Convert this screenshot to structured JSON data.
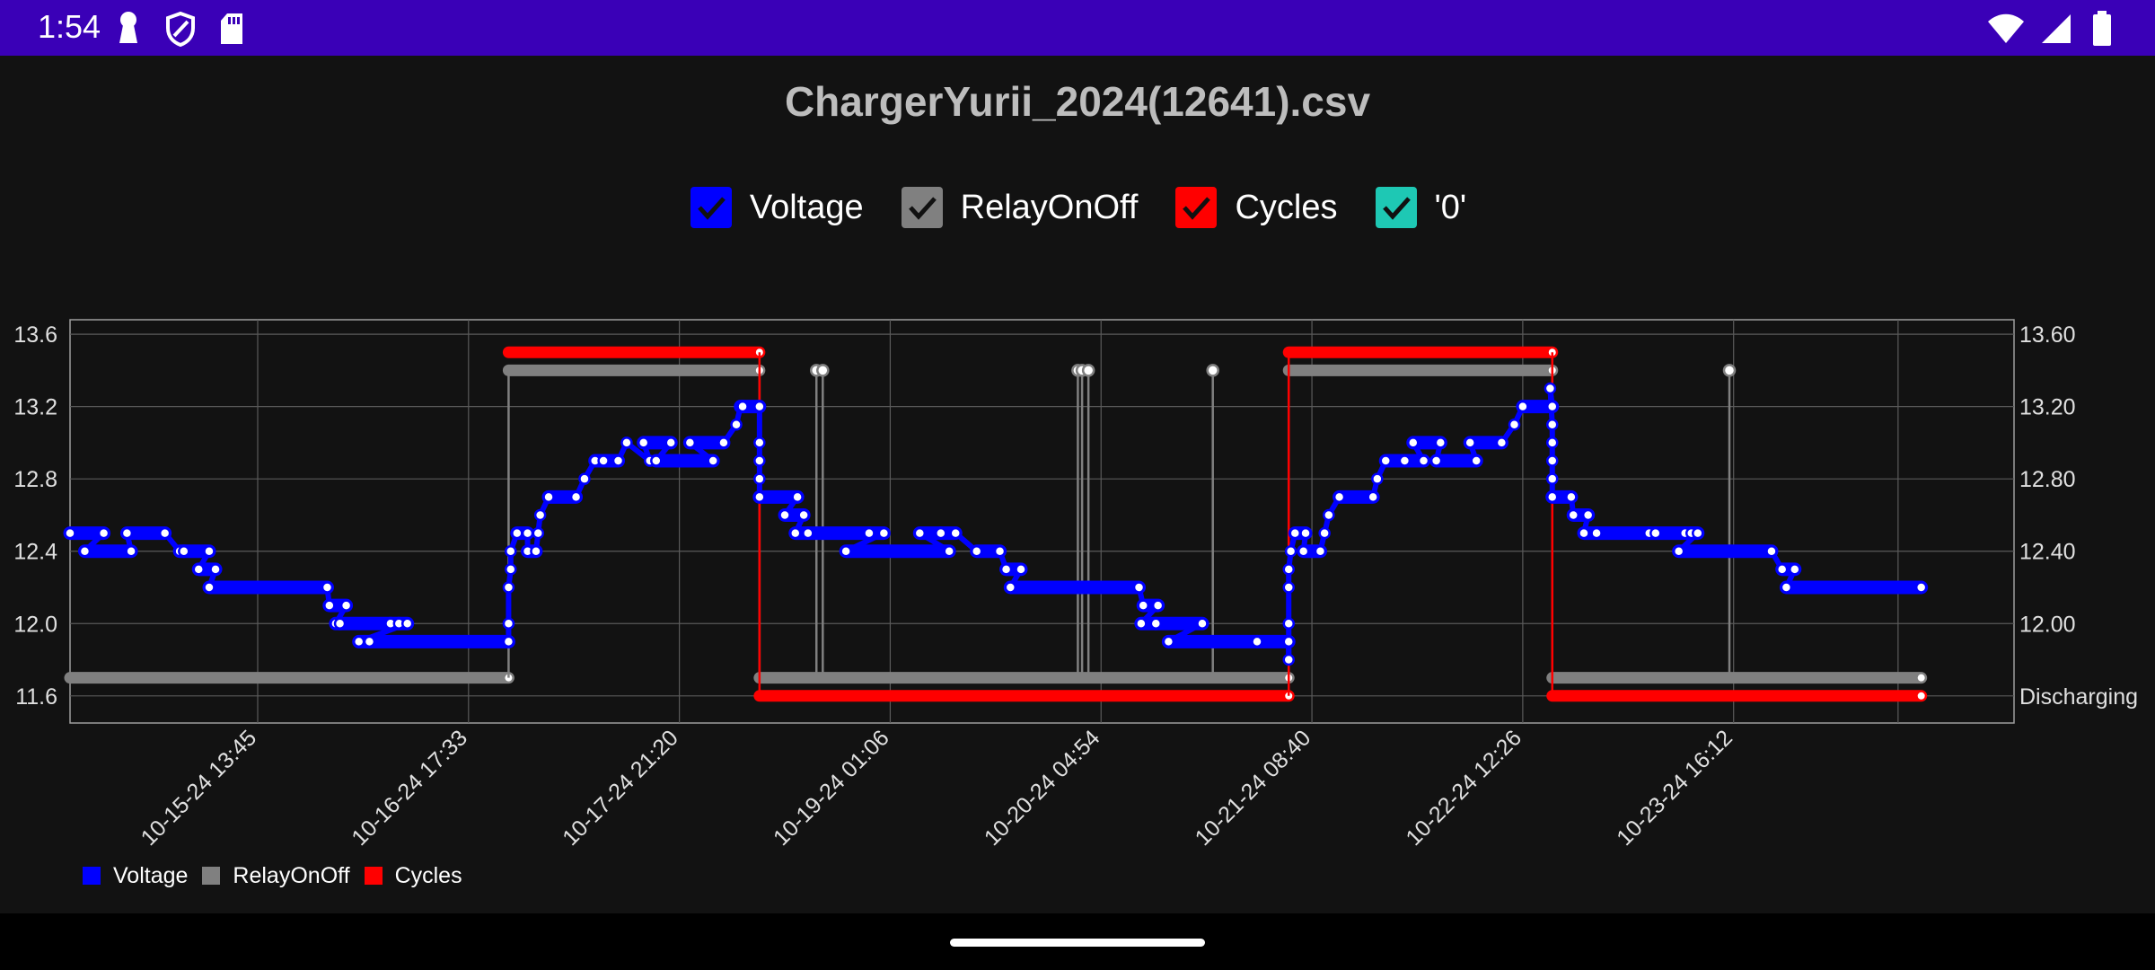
{
  "status_bar": {
    "time": "1:54",
    "left_icons": [
      "keyhole-icon",
      "shield-icon",
      "sd-card-icon"
    ],
    "right_icons": [
      "wifi-icon",
      "signal-icon",
      "battery-icon"
    ]
  },
  "title": "ChargerYurii_2024(12641).csv",
  "toggles": [
    {
      "label": "Voltage",
      "color": "#0000ff",
      "checked": true
    },
    {
      "label": "RelayOnOff",
      "color": "#808080",
      "checked": true
    },
    {
      "label": "Cycles",
      "color": "#ff0000",
      "checked": true
    },
    {
      "label": "'0'",
      "color": "#1ec8b4",
      "checked": true
    }
  ],
  "bottom_legend": [
    {
      "label": "Voltage",
      "color": "#0000ff"
    },
    {
      "label": "RelayOnOff",
      "color": "#808080"
    },
    {
      "label": "Cycles",
      "color": "#ff0000"
    }
  ],
  "chart_data": {
    "type": "line",
    "left_axis": {
      "ticks": [
        11.6,
        12.0,
        12.4,
        12.8,
        13.2,
        13.6
      ],
      "tick_labels": [
        "11.6",
        "12.0",
        "12.4",
        "12.8",
        "13.2",
        "13.6"
      ],
      "range": [
        11.45,
        13.68
      ]
    },
    "right_axis": {
      "tick_labels": [
        "Discharging",
        "12.00",
        "12.40",
        "12.80",
        "13.20",
        "13.60"
      ]
    },
    "x_axis": {
      "unit": "hours since first x tick",
      "range": [
        -89,
        833
      ],
      "ticks": [
        0,
        100,
        200,
        300,
        400,
        500,
        600,
        700
      ],
      "tick_labels": [
        "10-15-24 13:45",
        "10-16-24 17:33",
        "10-17-24 21:20",
        "10-19-24 01:06",
        "10-20-24 04:54",
        "10-21-24 08:40",
        "10-22-24 12:26",
        "10-23-24 16:12"
      ],
      "extra_gridlines": [
        778
      ]
    },
    "grid": true,
    "series": [
      {
        "name": "Voltage",
        "color": "#0000ff",
        "points": [
          [
            -89,
            12.5
          ],
          [
            -73,
            12.5
          ],
          [
            -82,
            12.4
          ],
          [
            -60,
            12.4
          ],
          [
            -62,
            12.5
          ],
          [
            -44,
            12.5
          ],
          [
            -37,
            12.4
          ],
          [
            -35,
            12.4
          ],
          [
            -23,
            12.4
          ],
          [
            -28,
            12.3
          ],
          [
            -20,
            12.3
          ],
          [
            -23,
            12.2
          ],
          [
            33,
            12.2
          ],
          [
            34,
            12.1
          ],
          [
            42,
            12.1
          ],
          [
            37,
            12.0
          ],
          [
            39,
            12.0
          ],
          [
            63,
            12.0
          ],
          [
            67,
            12.0
          ],
          [
            71,
            12.0
          ],
          [
            48,
            11.9
          ],
          [
            53,
            11.9
          ],
          [
            119,
            11.9
          ],
          [
            119,
            12.0
          ],
          [
            119,
            12.2
          ],
          [
            120,
            12.3
          ],
          [
            120,
            12.4
          ],
          [
            123,
            12.5
          ],
          [
            128,
            12.5
          ],
          [
            128,
            12.4
          ],
          [
            132,
            12.4
          ],
          [
            133,
            12.5
          ],
          [
            134,
            12.6
          ],
          [
            138,
            12.7
          ],
          [
            151,
            12.7
          ],
          [
            155,
            12.8
          ],
          [
            160,
            12.9
          ],
          [
            164,
            12.9
          ],
          [
            171,
            12.9
          ],
          [
            175,
            13.0
          ],
          [
            186,
            12.9
          ],
          [
            183,
            13.0
          ],
          [
            196,
            13.0
          ],
          [
            189,
            12.9
          ],
          [
            216,
            12.9
          ],
          [
            205,
            13.0
          ],
          [
            221,
            13.0
          ],
          [
            227,
            13.1
          ],
          [
            229,
            13.2
          ],
          [
            230,
            13.2
          ],
          [
            238,
            13.2
          ],
          [
            238,
            13.0
          ],
          [
            238,
            12.9
          ],
          [
            238,
            12.8
          ],
          [
            238,
            12.7
          ],
          [
            256,
            12.7
          ],
          [
            250,
            12.6
          ],
          [
            259,
            12.6
          ],
          [
            255,
            12.5
          ],
          [
            261,
            12.5
          ],
          [
            290,
            12.5
          ],
          [
            297,
            12.5
          ],
          [
            279,
            12.4
          ],
          [
            328,
            12.4
          ],
          [
            314,
            12.5
          ],
          [
            324,
            12.5
          ],
          [
            331,
            12.5
          ],
          [
            341,
            12.4
          ],
          [
            352,
            12.4
          ],
          [
            355,
            12.3
          ],
          [
            362,
            12.3
          ],
          [
            357,
            12.2
          ],
          [
            418,
            12.2
          ],
          [
            420,
            12.1
          ],
          [
            427,
            12.1
          ],
          [
            419,
            12.0
          ],
          [
            426,
            12.0
          ],
          [
            448,
            12.0
          ],
          [
            432,
            11.9
          ],
          [
            474,
            11.9
          ],
          [
            489,
            11.9
          ],
          [
            489,
            11.8
          ],
          [
            489,
            12.0
          ],
          [
            489,
            12.2
          ],
          [
            489,
            12.3
          ],
          [
            490,
            12.4
          ],
          [
            492,
            12.5
          ],
          [
            497,
            12.5
          ],
          [
            496,
            12.4
          ],
          [
            504,
            12.4
          ],
          [
            506,
            12.5
          ],
          [
            508,
            12.6
          ],
          [
            513,
            12.7
          ],
          [
            529,
            12.7
          ],
          [
            531,
            12.8
          ],
          [
            535,
            12.9
          ],
          [
            544,
            12.9
          ],
          [
            553,
            12.9
          ],
          [
            548,
            13.0
          ],
          [
            561,
            13.0
          ],
          [
            559,
            12.9
          ],
          [
            578,
            12.9
          ],
          [
            575,
            13.0
          ],
          [
            590,
            13.0
          ],
          [
            596,
            13.1
          ],
          [
            600,
            13.2
          ],
          [
            614,
            13.2
          ],
          [
            613,
            13.3
          ],
          [
            614,
            13.1
          ],
          [
            614,
            13.0
          ],
          [
            614,
            12.9
          ],
          [
            614,
            12.8
          ],
          [
            614,
            12.7
          ],
          [
            623,
            12.7
          ],
          [
            624,
            12.6
          ],
          [
            631,
            12.6
          ],
          [
            629,
            12.5
          ],
          [
            635,
            12.5
          ],
          [
            660,
            12.5
          ],
          [
            663,
            12.5
          ],
          [
            677,
            12.5
          ],
          [
            680,
            12.5
          ],
          [
            683,
            12.5
          ],
          [
            674,
            12.4
          ],
          [
            718,
            12.4
          ],
          [
            723,
            12.3
          ],
          [
            729,
            12.3
          ],
          [
            725,
            12.2
          ],
          [
            789,
            12.2
          ]
        ]
      },
      {
        "name": "RelayOnOff",
        "color": "#808080",
        "segments": [
          [
            -89,
            119,
            "low"
          ],
          [
            119,
            238,
            "high"
          ],
          [
            238,
            489,
            "low"
          ],
          [
            489,
            614,
            "high"
          ],
          [
            614,
            789,
            "low"
          ]
        ],
        "spikes": [
          265,
          268,
          389,
          391,
          394,
          453,
          698
        ]
      },
      {
        "name": "Cycles",
        "color": "#ff0000",
        "segments": [
          [
            119,
            238,
            "high"
          ],
          [
            238,
            489,
            "low"
          ],
          [
            489,
            614,
            "high"
          ],
          [
            614,
            789,
            "low"
          ]
        ]
      }
    ]
  }
}
